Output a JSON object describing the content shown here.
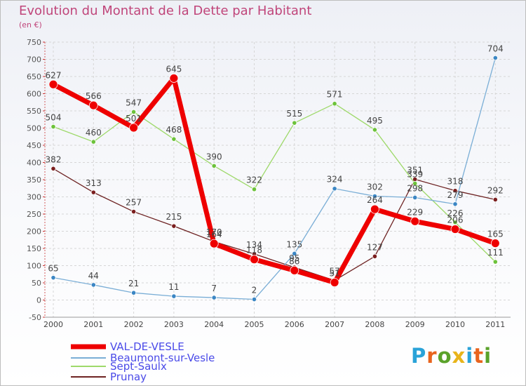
{
  "title": "Evolution du Montant de la Dette par Habitant",
  "subtitle": "(en €)",
  "logo": {
    "letters": [
      "P",
      "r",
      "o",
      "x",
      "i",
      "t",
      "i"
    ],
    "colors": [
      "#2aa3d8",
      "#e8641e",
      "#5aa22a",
      "#e8b41a",
      "#2aa3d8",
      "#e8641e",
      "#5aa22a"
    ]
  },
  "chart_data": {
    "type": "line",
    "x": [
      "2000",
      "2001",
      "2002",
      "2003",
      "2004",
      "2005",
      "2006",
      "2007",
      "2008",
      "2009",
      "2010",
      "2011"
    ],
    "ylim": [
      -50,
      750
    ],
    "yticks": [
      "-50",
      "0",
      "50",
      "100",
      "150",
      "200",
      "250",
      "300",
      "350",
      "400",
      "450",
      "500",
      "550",
      "600",
      "650",
      "700",
      "750"
    ],
    "grid": true,
    "legend_position": "bottom-left",
    "series": [
      {
        "name": "Prunay",
        "color": "#6e2323",
        "point": "#7a1e1e",
        "width": 1.3,
        "marker": 3.2,
        "values": [
          382,
          313,
          257,
          215,
          170,
          134,
          95,
          57,
          127,
          351,
          318,
          292
        ],
        "labels": [
          "382",
          "313",
          "257",
          "215",
          "170",
          "134",
          "95",
          "57",
          "127",
          "351",
          "318",
          "292"
        ]
      },
      {
        "name": "Sept-Saulx",
        "color": "#9ed96a",
        "point": "#6cc23a",
        "width": 1.3,
        "marker": 3.2,
        "values": [
          504,
          460,
          547,
          468,
          390,
          322,
          515,
          571,
          495,
          339,
          226,
          111
        ],
        "labels": [
          "504",
          "460",
          "547",
          "468",
          "390",
          "322",
          "515",
          "571",
          "495",
          "339",
          "226",
          "111"
        ]
      },
      {
        "name": "Beaumont-sur-Vesle",
        "color": "#7aaed6",
        "point": "#3b86c4",
        "width": 1.3,
        "marker": 3.2,
        "values": [
          65,
          44,
          21,
          11,
          7,
          2,
          135,
          324,
          302,
          298,
          279,
          704
        ],
        "labels": [
          "65",
          "44",
          "21",
          "11",
          "7",
          "2",
          "135",
          "324",
          "302",
          "298",
          "279",
          "704"
        ]
      },
      {
        "name": "VAL-DE-VESLE",
        "color": "#ee0000",
        "point": "#ee0000",
        "width": 7,
        "marker": 6,
        "values": [
          627,
          566,
          501,
          645,
          164,
          118,
          86,
          51,
          264,
          229,
          206,
          165
        ],
        "labels": [
          "627",
          "566",
          "501",
          "645",
          "164",
          "118",
          "86",
          "51",
          "264",
          "229",
          "206",
          "165"
        ]
      }
    ]
  },
  "legend": [
    {
      "name": "VAL-DE-VESLE"
    },
    {
      "name": "Beaumont-sur-Vesle"
    },
    {
      "name": "Sept-Saulx"
    },
    {
      "name": "Prunay"
    }
  ]
}
